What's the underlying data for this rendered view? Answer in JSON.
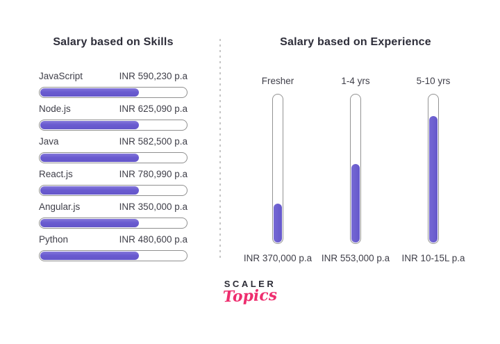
{
  "chart_data": [
    {
      "type": "bar",
      "orientation": "horizontal",
      "title": "Salary based on Skills",
      "categories": [
        "JavaScript",
        "Node.js",
        "Java",
        "React.js",
        "Angular.js",
        "Python"
      ],
      "values": [
        590230,
        625090,
        582500,
        780990,
        350000,
        480600
      ],
      "value_labels": [
        "INR 590,230 p.a",
        "INR 625,090 p.a",
        "INR 582,500 p.a",
        "INR 780,990 p.a",
        "INR 350,000 p.a",
        "INR 480,600 p.a"
      ],
      "bar_fill_percents": [
        67,
        67,
        67,
        67,
        67,
        67
      ]
    },
    {
      "type": "bar",
      "orientation": "vertical",
      "title": "Salary based on Experience",
      "categories": [
        "Fresher",
        "1-4 yrs",
        "5-10 yrs"
      ],
      "values": [
        370000,
        553000,
        "1000000-1500000"
      ],
      "value_labels": [
        "INR 370,000 p.a",
        "INR 553,000 p.a",
        "INR 10-15L p.a"
      ],
      "bar_fill_percents": [
        26,
        53,
        85
      ]
    }
  ],
  "logo": {
    "line1": "SCALER",
    "line2": "Topics"
  },
  "colors": {
    "bar_fill": "#6a5bd0",
    "bar_outline": "#8f8f8f",
    "text": "#3e3e48",
    "title": "#2d2d39",
    "brand_pink": "#ee2d6e",
    "divider": "#c6c6c6",
    "background": "#ffffff"
  }
}
